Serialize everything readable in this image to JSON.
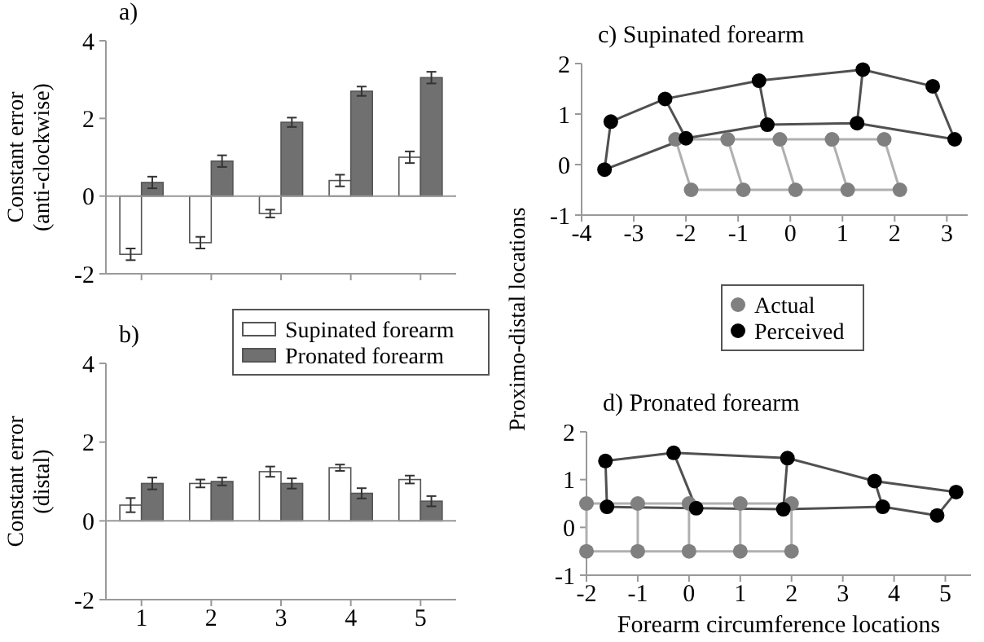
{
  "chart_data": [
    {
      "type": "bar",
      "title": "a)",
      "ylabel": "Constant error\n(anti-clockwise)",
      "categories": [
        null,
        null,
        null,
        null,
        null
      ],
      "ylim": [
        -2,
        4
      ],
      "yticks": [
        -2,
        0,
        2,
        4
      ],
      "tick_labels": "y",
      "legend": "bottom",
      "grid": false,
      "ref_lines": [
        {
          "axis": "y",
          "value": 0
        }
      ],
      "series": [
        {
          "name": "Supinated forearm",
          "color": "#ffffff",
          "values": [
            -1.5,
            -1.2,
            -0.45,
            0.4,
            1.0
          ],
          "errors": [
            0.15,
            0.15,
            0.1,
            0.15,
            0.15
          ]
        },
        {
          "name": "Pronated forearm",
          "color": "#707070",
          "values": [
            0.35,
            0.9,
            1.9,
            2.7,
            3.05
          ],
          "errors": [
            0.15,
            0.15,
            0.12,
            0.12,
            0.15
          ]
        }
      ]
    },
    {
      "type": "bar",
      "title": "b)",
      "ylabel": "Constant error\n(distal)",
      "categories": [
        "1",
        "2",
        "3",
        "4",
        "5"
      ],
      "ylim": [
        -2,
        4
      ],
      "yticks": [
        -2,
        0,
        2,
        4
      ],
      "grid": false,
      "ref_lines": [
        {
          "axis": "y",
          "value": 0
        }
      ],
      "series": [
        {
          "color": "#ffffff",
          "values": [
            0.4,
            0.95,
            1.25,
            1.35,
            1.05
          ],
          "errors": [
            0.18,
            0.1,
            0.13,
            0.08,
            0.1
          ]
        },
        {
          "color": "#707070",
          "values": [
            0.95,
            1.0,
            0.95,
            0.7,
            0.5
          ],
          "errors": [
            0.15,
            0.1,
            0.13,
            0.13,
            0.13
          ]
        }
      ]
    },
    {
      "type": "scatter",
      "title": "c) Supinated forearm",
      "ylabel": "Proximo-distal locations",
      "xlim": [
        -4,
        3.4
      ],
      "xticks": [
        -4,
        -3,
        -2,
        -1,
        0,
        1,
        2,
        3
      ],
      "ylim": [
        -1,
        2
      ],
      "yticks": [
        -1,
        0,
        1,
        2
      ],
      "legend": "bottom",
      "marker": "circle",
      "grid": false,
      "series": [
        {
          "type": "line",
          "marker": "none",
          "color": "#b0b0b0",
          "x": [
            -2.2,
            -1.2,
            -0.2,
            0.8,
            1.8
          ],
          "values": [
            0.5,
            0.5,
            0.5,
            0.5,
            0.5
          ]
        },
        {
          "type": "line",
          "marker": "none",
          "color": "#b0b0b0",
          "x": [
            -1.9,
            -0.9,
            0.1,
            1.1,
            2.1
          ],
          "values": [
            -0.5,
            -0.5,
            -0.5,
            -0.5,
            -0.5
          ]
        },
        {
          "type": "line",
          "marker": "none",
          "color": "#b0b0b0",
          "x": [
            -2.2,
            -1.9
          ],
          "values": [
            0.5,
            -0.5
          ]
        },
        {
          "type": "line",
          "marker": "none",
          "color": "#b0b0b0",
          "x": [
            -1.2,
            -0.9
          ],
          "values": [
            0.5,
            -0.5
          ]
        },
        {
          "type": "line",
          "marker": "none",
          "color": "#b0b0b0",
          "x": [
            -0.2,
            0.1
          ],
          "values": [
            0.5,
            -0.5
          ]
        },
        {
          "type": "line",
          "marker": "none",
          "color": "#b0b0b0",
          "x": [
            0.8,
            1.1
          ],
          "values": [
            0.5,
            -0.5
          ]
        },
        {
          "type": "line",
          "marker": "none",
          "color": "#b0b0b0",
          "x": [
            1.8,
            2.1
          ],
          "values": [
            0.5,
            -0.5
          ]
        },
        {
          "type": "line",
          "marker": "none",
          "color": "#505050",
          "x": [
            -3.44,
            -2.4,
            -0.6,
            1.39,
            2.73
          ],
          "values": [
            0.85,
            1.3,
            1.66,
            1.88,
            1.55
          ]
        },
        {
          "type": "line",
          "marker": "none",
          "color": "#505050",
          "x": [
            -3.56,
            -2.0,
            -0.44,
            1.28,
            3.15
          ],
          "values": [
            -0.1,
            0.52,
            0.79,
            0.82,
            0.5
          ]
        },
        {
          "type": "line",
          "marker": "none",
          "color": "#505050",
          "x": [
            -3.44,
            -3.56
          ],
          "values": [
            0.85,
            -0.1
          ]
        },
        {
          "type": "line",
          "marker": "none",
          "color": "#505050",
          "x": [
            -2.4,
            -2.0
          ],
          "values": [
            1.3,
            0.52
          ]
        },
        {
          "type": "line",
          "marker": "none",
          "color": "#505050",
          "x": [
            -0.6,
            -0.44
          ],
          "values": [
            1.66,
            0.79
          ]
        },
        {
          "type": "line",
          "marker": "none",
          "color": "#505050",
          "x": [
            1.39,
            1.28
          ],
          "values": [
            1.88,
            0.82
          ]
        },
        {
          "type": "line",
          "marker": "none",
          "color": "#505050",
          "x": [
            2.73,
            3.15
          ],
          "values": [
            1.55,
            0.5
          ]
        },
        {
          "name": "Actual",
          "color": "#808080",
          "x": [
            -2.2,
            -1.2,
            -0.2,
            0.8,
            1.8,
            -1.9,
            -0.9,
            0.1,
            1.1,
            2.1
          ],
          "values": [
            0.5,
            0.5,
            0.5,
            0.5,
            0.5,
            -0.5,
            -0.5,
            -0.5,
            -0.5,
            -0.5
          ]
        },
        {
          "name": "Perceived",
          "color": "#000000",
          "x": [
            -3.44,
            -2.4,
            -0.6,
            1.39,
            2.73,
            -3.56,
            -2.0,
            -0.44,
            1.28,
            3.15
          ],
          "values": [
            0.85,
            1.3,
            1.66,
            1.88,
            1.55,
            -0.1,
            0.52,
            0.79,
            0.82,
            0.5
          ]
        }
      ]
    },
    {
      "type": "scatter",
      "title": "d) Pronated forearm",
      "xlabel": "Forearm circumference locations",
      "xlim": [
        -2,
        5.5
      ],
      "xticks": [
        -2,
        -1,
        0,
        1,
        2,
        3,
        4,
        5
      ],
      "ylim": [
        -1,
        2
      ],
      "yticks": [
        -1,
        0,
        1,
        2
      ],
      "marker": "circle",
      "grid": false,
      "series": [
        {
          "type": "line",
          "marker": "none",
          "color": "#b0b0b0",
          "x": [
            -2,
            -1,
            0,
            1,
            2
          ],
          "values": [
            0.5,
            0.5,
            0.5,
            0.5,
            0.5
          ]
        },
        {
          "type": "line",
          "marker": "none",
          "color": "#b0b0b0",
          "x": [
            -2,
            -1,
            0,
            1,
            2
          ],
          "values": [
            -0.5,
            -0.5,
            -0.5,
            -0.5,
            -0.5
          ]
        },
        {
          "type": "line",
          "marker": "none",
          "color": "#b0b0b0",
          "x": [
            -2,
            -2
          ],
          "values": [
            0.5,
            -0.5
          ]
        },
        {
          "type": "line",
          "marker": "none",
          "color": "#b0b0b0",
          "x": [
            -1,
            -1
          ],
          "values": [
            0.5,
            -0.5
          ]
        },
        {
          "type": "line",
          "marker": "none",
          "color": "#b0b0b0",
          "x": [
            0,
            0
          ],
          "values": [
            0.5,
            -0.5
          ]
        },
        {
          "type": "line",
          "marker": "none",
          "color": "#b0b0b0",
          "x": [
            1,
            1
          ],
          "values": [
            0.5,
            -0.5
          ]
        },
        {
          "type": "line",
          "marker": "none",
          "color": "#b0b0b0",
          "x": [
            2,
            2
          ],
          "values": [
            0.5,
            -0.5
          ]
        },
        {
          "type": "line",
          "marker": "none",
          "color": "#505050",
          "x": [
            -1.63,
            -0.3,
            1.92,
            3.62,
            5.21
          ],
          "values": [
            1.39,
            1.56,
            1.45,
            0.97,
            0.74
          ]
        },
        {
          "type": "line",
          "marker": "none",
          "color": "#505050",
          "x": [
            -1.6,
            0.14,
            1.84,
            3.78,
            4.84
          ],
          "values": [
            0.43,
            0.4,
            0.38,
            0.43,
            0.25
          ]
        },
        {
          "type": "line",
          "marker": "none",
          "color": "#505050",
          "x": [
            -1.63,
            -1.6
          ],
          "values": [
            1.39,
            0.43
          ]
        },
        {
          "type": "line",
          "marker": "none",
          "color": "#505050",
          "x": [
            -0.3,
            0.14
          ],
          "values": [
            1.56,
            0.4
          ]
        },
        {
          "type": "line",
          "marker": "none",
          "color": "#505050",
          "x": [
            1.92,
            1.84
          ],
          "values": [
            1.45,
            0.38
          ]
        },
        {
          "type": "line",
          "marker": "none",
          "color": "#505050",
          "x": [
            3.62,
            3.78
          ],
          "values": [
            0.97,
            0.43
          ]
        },
        {
          "type": "line",
          "marker": "none",
          "color": "#505050",
          "x": [
            5.21,
            4.84
          ],
          "values": [
            0.74,
            0.25
          ]
        },
        {
          "color": "#808080",
          "x": [
            -2,
            -1,
            0,
            1,
            2,
            -2,
            -1,
            0,
            1,
            2
          ],
          "values": [
            0.5,
            0.5,
            0.5,
            0.5,
            0.5,
            -0.5,
            -0.5,
            -0.5,
            -0.5,
            -0.5
          ]
        },
        {
          "color": "#000000",
          "x": [
            -1.63,
            -0.3,
            1.92,
            3.62,
            5.21,
            -1.6,
            0.14,
            1.84,
            3.78,
            4.84
          ],
          "values": [
            1.39,
            1.56,
            1.45,
            0.97,
            0.74,
            0.43,
            0.4,
            0.38,
            0.43,
            0.25
          ]
        }
      ]
    }
  ]
}
